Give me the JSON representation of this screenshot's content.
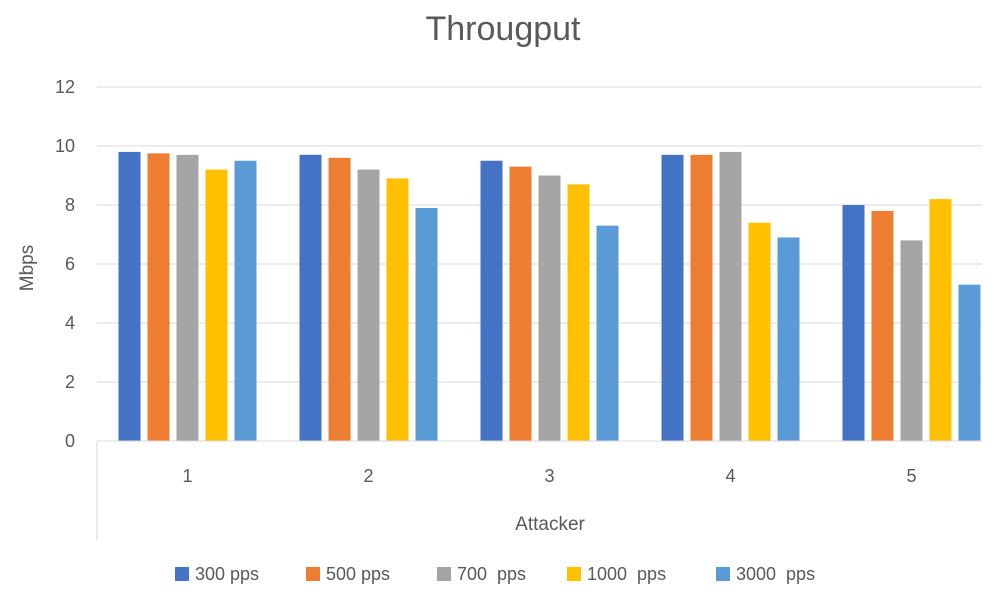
{
  "chart_data": {
    "type": "bar",
    "title": "Througput",
    "xlabel": "Attacker",
    "ylabel": "Mbps",
    "categories": [
      "1",
      "2",
      "3",
      "4",
      "5"
    ],
    "ylim": [
      0,
      12
    ],
    "yticks": [
      0,
      2,
      4,
      6,
      8,
      10,
      12
    ],
    "grid": true,
    "legend_position": "bottom",
    "series": [
      {
        "name": "300 pps",
        "color": "#4472C4",
        "values": [
          9.8,
          9.7,
          9.5,
          9.7,
          8.0
        ]
      },
      {
        "name": "500 pps",
        "color": "#ED7D31",
        "values": [
          9.75,
          9.6,
          9.3,
          9.7,
          7.8
        ]
      },
      {
        "name": "700  pps",
        "color": "#A5A5A5",
        "values": [
          9.7,
          9.2,
          9.0,
          9.8,
          6.8
        ]
      },
      {
        "name": "1000  pps",
        "color": "#FFC000",
        "values": [
          9.2,
          8.9,
          8.7,
          7.4,
          8.2
        ]
      },
      {
        "name": "3000  pps",
        "color": "#5B9BD5",
        "values": [
          9.5,
          7.9,
          7.3,
          6.9,
          5.3
        ]
      }
    ]
  }
}
